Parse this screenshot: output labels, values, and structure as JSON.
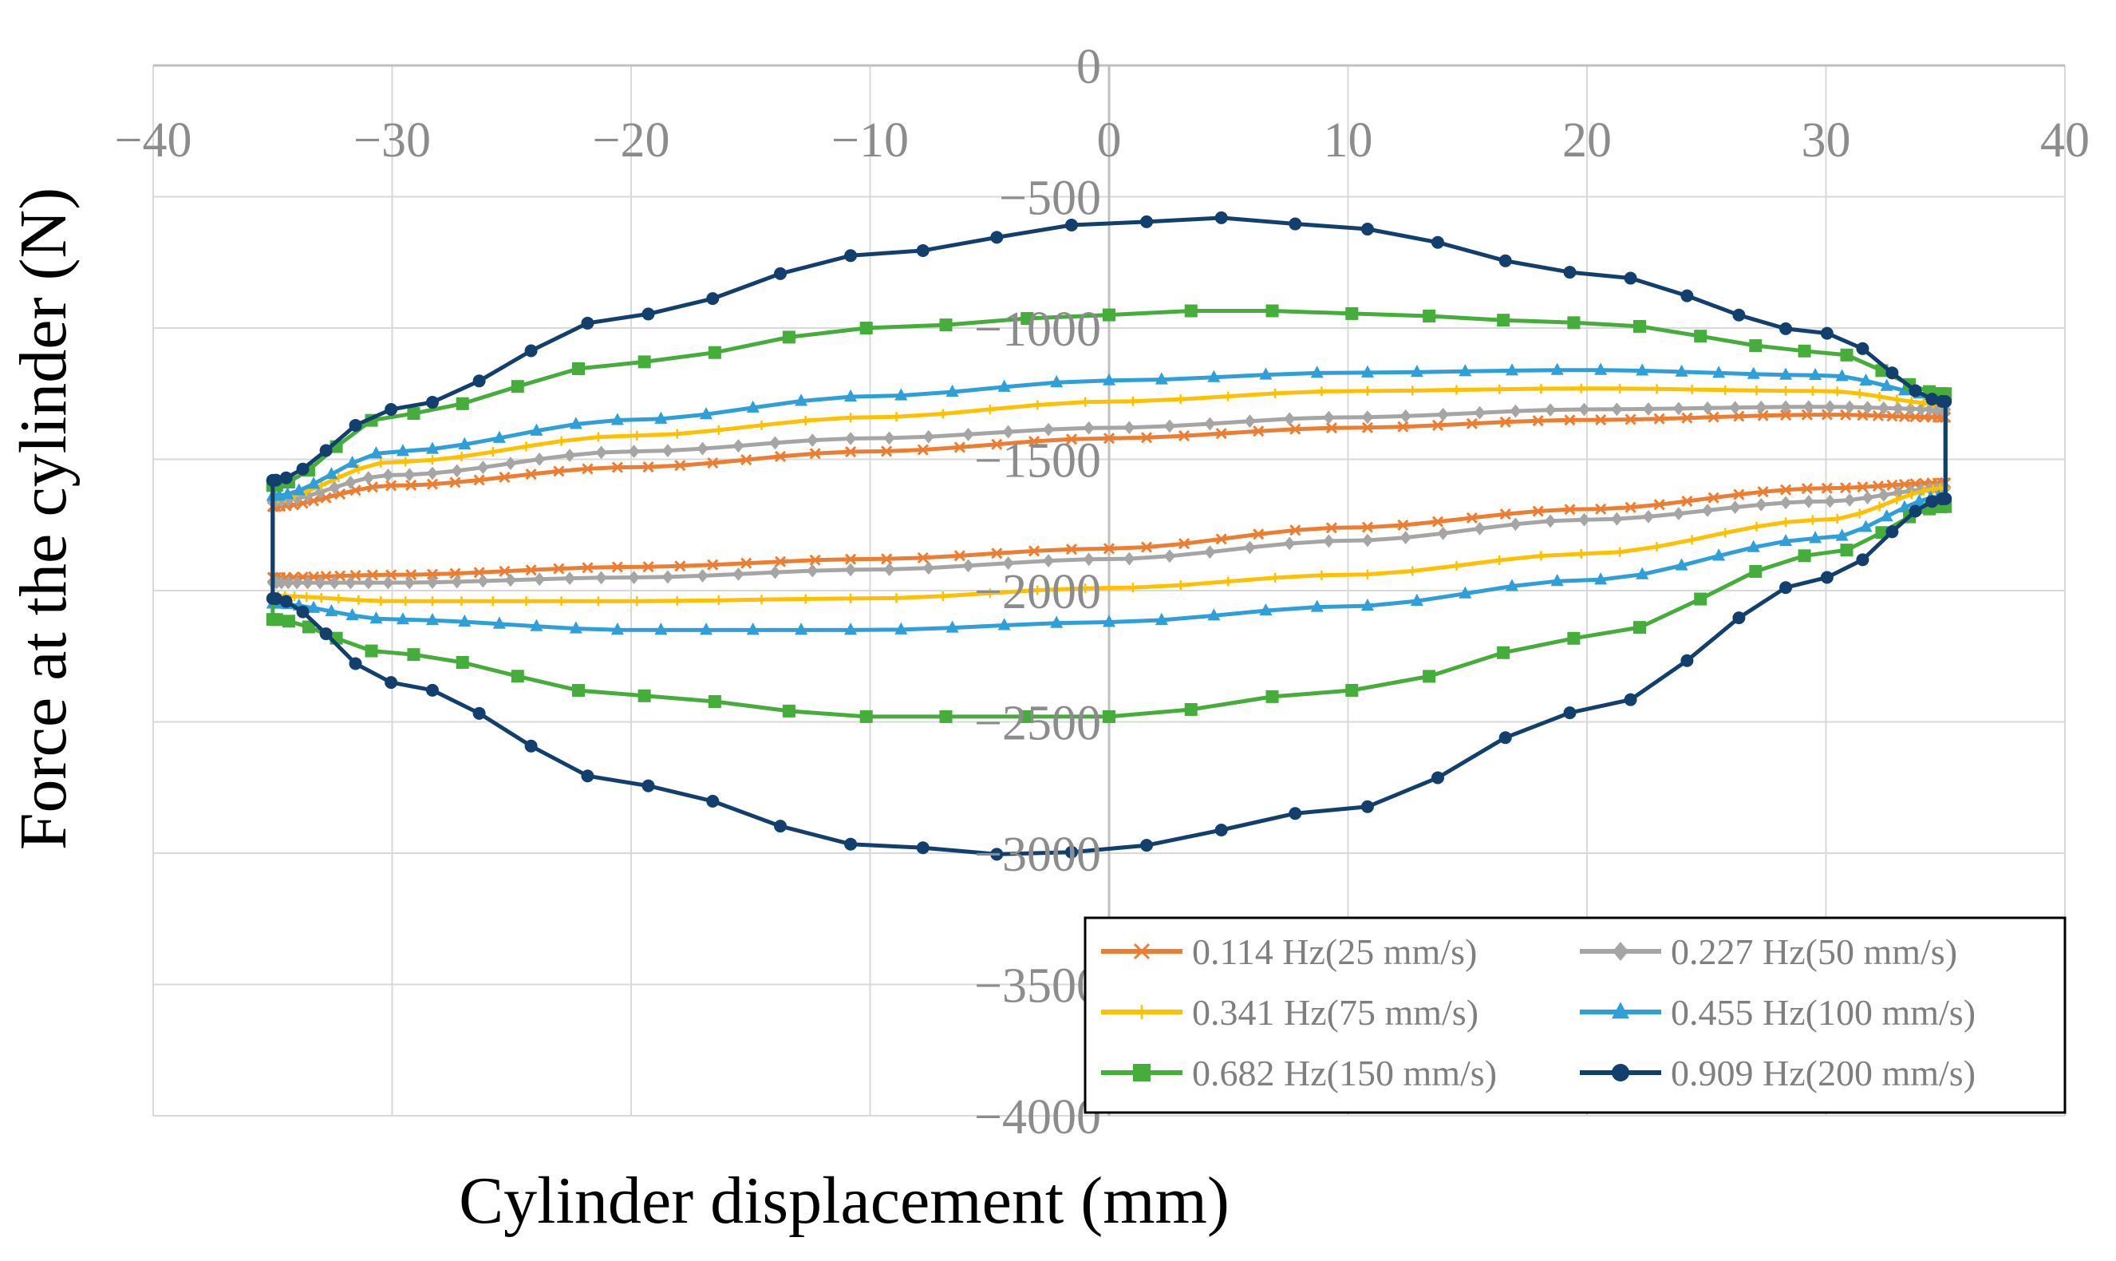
{
  "chart_data": {
    "type": "scatter",
    "title": "",
    "xlabel": "Cylinder displacement (mm)",
    "ylabel": "Force at the cylinder (N)",
    "xlim": [
      -40,
      40
    ],
    "ylim": [
      -4000,
      0
    ],
    "xticks": [
      -40,
      -30,
      -20,
      -10,
      0,
      10,
      20,
      30,
      40
    ],
    "yticks": [
      0,
      -500,
      -1000,
      -1500,
      -2000,
      -2500,
      -3000,
      -3500,
      -4000
    ],
    "xtick_labels": [
      "−40",
      "−30",
      "−20",
      "−10",
      "0",
      "10",
      "20",
      "30",
      "40"
    ],
    "ytick_labels": [
      "0",
      "−500",
      "−1000",
      "−1500",
      "−2000",
      "−2500",
      "−3000",
      "−3500",
      "−4000"
    ],
    "grid": true,
    "legend_position": "bottom-right",
    "series": [
      {
        "name": "0.114 Hz(25 mm/s)",
        "color": "#ED7D31",
        "marker": "x",
        "n_points": 140,
        "upper": [
          [
            -35,
            -1680
          ],
          [
            -30,
            -1600
          ],
          [
            -20,
            -1530
          ],
          [
            -10,
            -1470
          ],
          [
            0,
            -1420
          ],
          [
            10,
            -1380
          ],
          [
            20,
            -1350
          ],
          [
            30,
            -1330
          ],
          [
            35,
            -1340
          ]
        ],
        "lower": [
          [
            -35,
            -1950
          ],
          [
            -30,
            -1940
          ],
          [
            -20,
            -1910
          ],
          [
            -10,
            -1880
          ],
          [
            0,
            -1840
          ],
          [
            10,
            -1760
          ],
          [
            20,
            -1690
          ],
          [
            30,
            -1610
          ],
          [
            35,
            -1590
          ]
        ]
      },
      {
        "name": "0.227 Hz(50 mm/s)",
        "color": "#A5A5A5",
        "marker": "diamond",
        "n_points": 130,
        "upper": [
          [
            -35,
            -1660
          ],
          [
            -30,
            -1560
          ],
          [
            -20,
            -1470
          ],
          [
            -10,
            -1420
          ],
          [
            0,
            -1380
          ],
          [
            10,
            -1340
          ],
          [
            20,
            -1310
          ],
          [
            30,
            -1300
          ],
          [
            35,
            -1310
          ]
        ],
        "lower": [
          [
            -35,
            -1970
          ],
          [
            -30,
            -1970
          ],
          [
            -20,
            -1950
          ],
          [
            -10,
            -1920
          ],
          [
            0,
            -1880
          ],
          [
            10,
            -1810
          ],
          [
            20,
            -1730
          ],
          [
            30,
            -1660
          ],
          [
            35,
            -1610
          ]
        ]
      },
      {
        "name": "0.341 Hz(75 mm/s)",
        "color": "#FFC000",
        "marker": "plus",
        "n_points": 110,
        "upper": [
          [
            -35,
            -1650
          ],
          [
            -30,
            -1510
          ],
          [
            -20,
            -1410
          ],
          [
            -10,
            -1340
          ],
          [
            0,
            -1280
          ],
          [
            10,
            -1240
          ],
          [
            20,
            -1230
          ],
          [
            30,
            -1240
          ],
          [
            35,
            -1290
          ]
        ],
        "lower": [
          [
            -35,
            -2020
          ],
          [
            -30,
            -2040
          ],
          [
            -20,
            -2040
          ],
          [
            -10,
            -2030
          ],
          [
            0,
            -1990
          ],
          [
            10,
            -1940
          ],
          [
            20,
            -1860
          ],
          [
            30,
            -1730
          ],
          [
            35,
            -1610
          ]
        ]
      },
      {
        "name": "0.455 Hz(100 mm/s)",
        "color": "#2E9FD8",
        "marker": "triangle",
        "n_points": 100,
        "upper": [
          [
            -35,
            -1640
          ],
          [
            -30,
            -1470
          ],
          [
            -20,
            -1350
          ],
          [
            -10,
            -1260
          ],
          [
            0,
            -1200
          ],
          [
            10,
            -1170
          ],
          [
            20,
            -1160
          ],
          [
            30,
            -1180
          ],
          [
            35,
            -1260
          ]
        ],
        "lower": [
          [
            -35,
            -2050
          ],
          [
            -30,
            -2110
          ],
          [
            -20,
            -2150
          ],
          [
            -10,
            -2150
          ],
          [
            0,
            -2120
          ],
          [
            10,
            -2060
          ],
          [
            20,
            -1960
          ],
          [
            30,
            -1800
          ],
          [
            35,
            -1640
          ]
        ]
      },
      {
        "name": "0.682 Hz(150 mm/s)",
        "color": "#45AD3A",
        "marker": "square",
        "n_points": 64,
        "upper": [
          [
            -35,
            -1600
          ],
          [
            -30,
            -1330
          ],
          [
            -20,
            -1130
          ],
          [
            -10,
            -1000
          ],
          [
            0,
            -950
          ],
          [
            5,
            -930
          ],
          [
            10,
            -945
          ],
          [
            20,
            -980
          ],
          [
            30,
            -1090
          ],
          [
            35,
            -1250
          ]
        ],
        "lower": [
          [
            -35,
            -2110
          ],
          [
            -30,
            -2240
          ],
          [
            -20,
            -2400
          ],
          [
            -10,
            -2480
          ],
          [
            0,
            -2480
          ],
          [
            10,
            -2380
          ],
          [
            20,
            -2180
          ],
          [
            30,
            -1860
          ],
          [
            35,
            -1680
          ]
        ]
      },
      {
        "name": "0.909 Hz(200 mm/s)",
        "color": "#123F6E",
        "marker": "circle",
        "n_points": 70,
        "upper": [
          [
            -35,
            -1580
          ],
          [
            -30,
            -1310
          ],
          [
            -20,
            -950
          ],
          [
            -10,
            -720
          ],
          [
            0,
            -600
          ],
          [
            5,
            -580
          ],
          [
            10,
            -620
          ],
          [
            20,
            -790
          ],
          [
            30,
            -1020
          ],
          [
            35,
            -1280
          ]
        ],
        "lower": [
          [
            -35,
            -2030
          ],
          [
            -30,
            -2350
          ],
          [
            -20,
            -2740
          ],
          [
            -10,
            -2970
          ],
          [
            -3,
            -3010
          ],
          [
            0,
            -2980
          ],
          [
            10,
            -2830
          ],
          [
            20,
            -2460
          ],
          [
            30,
            -1950
          ],
          [
            35,
            -1650
          ]
        ]
      }
    ]
  }
}
